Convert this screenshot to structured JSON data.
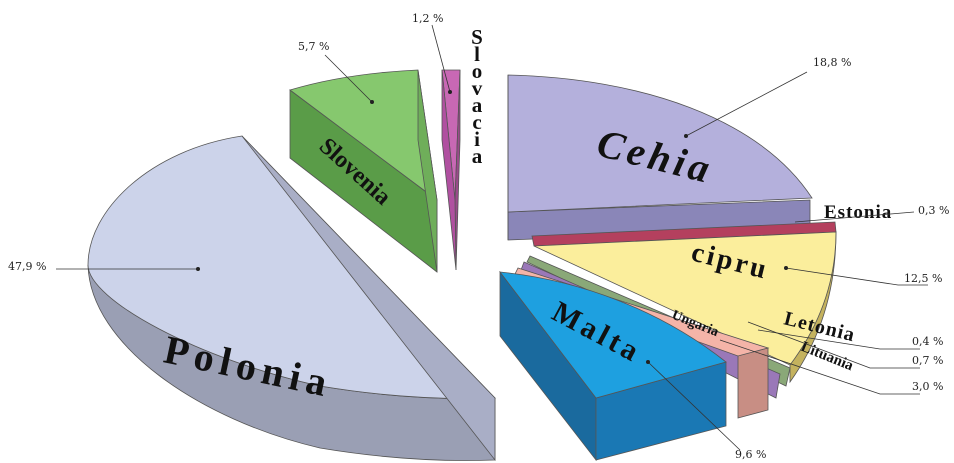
{
  "chart_data": {
    "type": "pie",
    "style": "3d-exploded",
    "legend": "none",
    "slices": [
      {
        "label": "Polonia",
        "value": 47.9,
        "value_label": "47,9 %",
        "color": "#ccd3ea"
      },
      {
        "label": "Slovenia",
        "value": 5.7,
        "value_label": "5,7 %",
        "color": "#86c86e"
      },
      {
        "label": "Slovacia",
        "value": 1.2,
        "value_label": "1,2 %",
        "color": "#c868b4"
      },
      {
        "label": "Cehia",
        "value": 18.8,
        "value_label": "18,8 %",
        "color": "#b4b0dc"
      },
      {
        "label": "Estonia",
        "value": 0.3,
        "value_label": "0,3 %",
        "color": "#b4405e"
      },
      {
        "label": "cipru",
        "value": 12.5,
        "value_label": "12,5 %",
        "color": "#fbee9c"
      },
      {
        "label": "Letonia",
        "value": 0.4,
        "value_label": "0,4 %",
        "color": "#8aa878"
      },
      {
        "label": "Lituania",
        "value": 0.7,
        "value_label": "0,7 %",
        "color": "#9a78b8"
      },
      {
        "label": "Ungaria",
        "value": 3.0,
        "value_label": "3,0 %",
        "color": "#f4b4a8"
      },
      {
        "label": "Malta",
        "value": 9.6,
        "value_label": "9,6 %",
        "color": "#1ea0e0"
      }
    ]
  }
}
